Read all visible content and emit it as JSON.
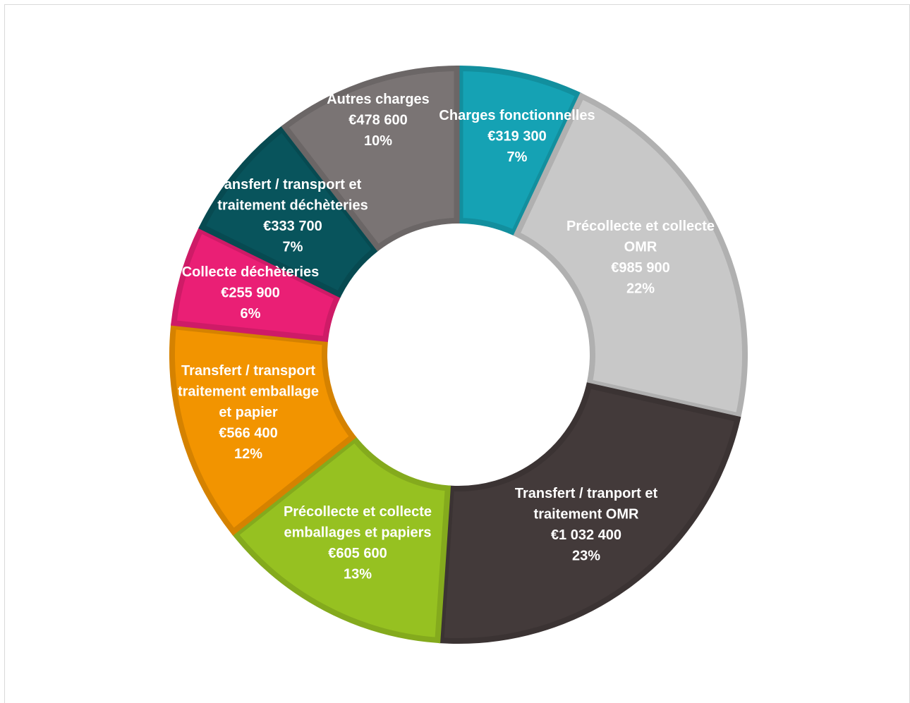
{
  "chart_data": {
    "type": "pie",
    "donut": true,
    "total_share": "100%",
    "slices": [
      {
        "name": "Charges fonctionnelles",
        "lines": [
          "Charges fonctionnelles"
        ],
        "value": 319300,
        "value_label": "€319 300",
        "percent_label": "7%",
        "color": "#15A2B4"
      },
      {
        "name": "Précollecte et collecte OMR",
        "lines": [
          "Précollecte et collecte",
          "OMR"
        ],
        "value": 985900,
        "value_label": "€985 900",
        "percent_label": "22%",
        "color": "#C8C8C8"
      },
      {
        "name": "Transfert / tranport et traitement OMR",
        "lines": [
          "Transfert / tranport et",
          "traitement OMR"
        ],
        "value": 1032400,
        "value_label": "€1 032 400",
        "percent_label": "23%",
        "color": "#433A3A"
      },
      {
        "name": "Précollecte et collecte emballages et papiers",
        "lines": [
          "Précollecte et collecte",
          "emballages et papiers"
        ],
        "value": 605600,
        "value_label": "€605 600",
        "percent_label": "13%",
        "color": "#96C121"
      },
      {
        "name": "Transfert / transport et traitement emballages et papier",
        "lines": [
          "Transfert / transport",
          "traitement emballage",
          "et papier"
        ],
        "value": 566400,
        "value_label": "€566 400",
        "percent_label": "12%",
        "color": "#F29400"
      },
      {
        "name": "Collecte déchèteries",
        "lines": [
          "Collecte déchèteries"
        ],
        "value": 255900,
        "value_label": "€255 900",
        "percent_label": "6%",
        "color": "#EA1F75"
      },
      {
        "name": "Transfert / transport et traitement déchèteries",
        "lines": [
          "ansfert / transport et",
          "traitement déchèteries"
        ],
        "value": 333700,
        "value_label": "€333 700",
        "percent_label": "7%",
        "color": "#08545C"
      },
      {
        "name": "Autres charges",
        "lines": [
          "Autres charges"
        ],
        "value": 478600,
        "value_label": "€478 600",
        "percent_label": "10%",
        "color": "#7A7474"
      }
    ]
  }
}
